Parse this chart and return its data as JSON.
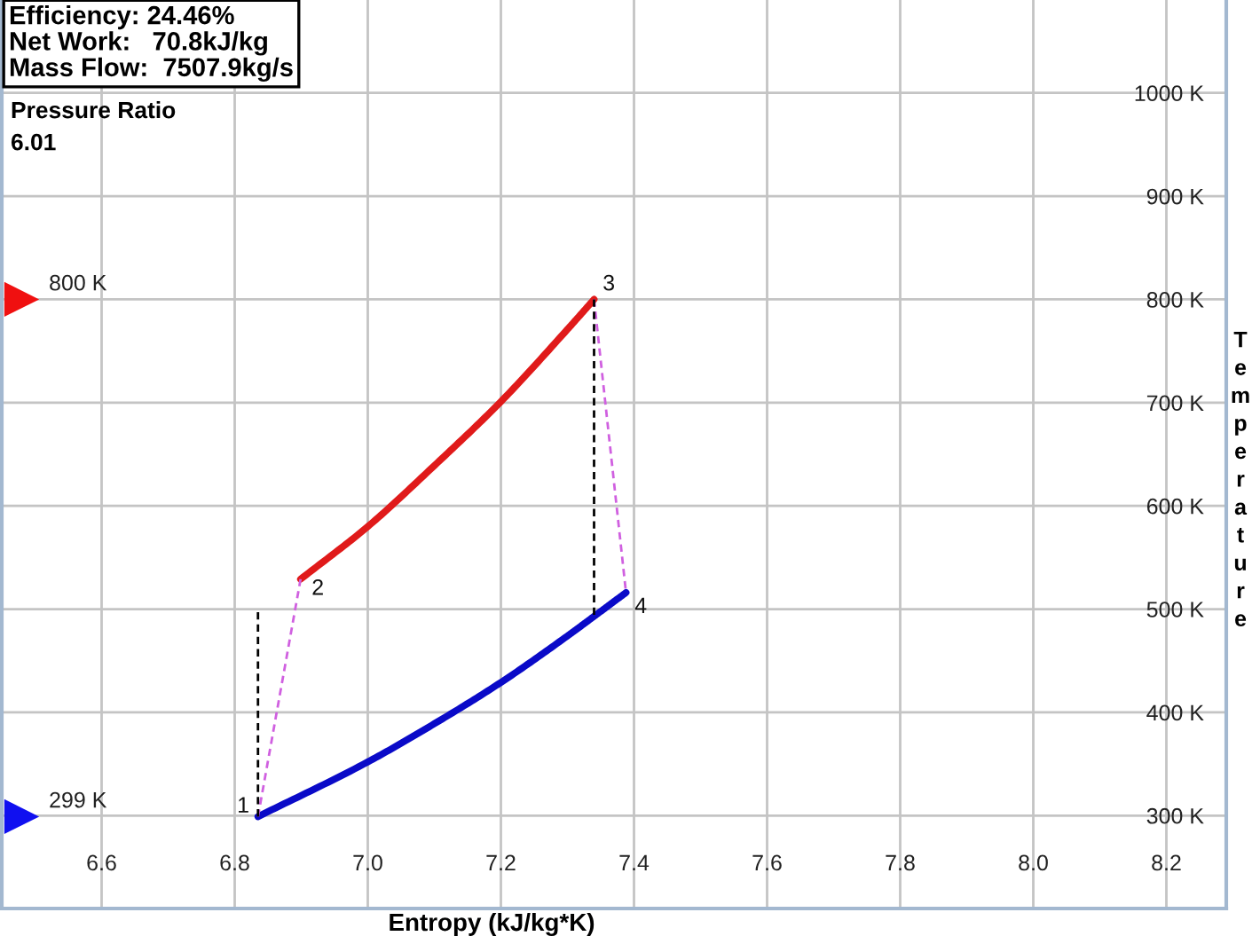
{
  "chart_data": {
    "type": "line",
    "xlabel": "Entropy (kJ/kg*K)",
    "ylabel": "Temperature",
    "xlim": [
      6.45,
      8.29
    ],
    "ylim": [
      210,
      1090
    ],
    "xticks": [
      6.6,
      6.8,
      {
        "value": 7,
        "label": "7.0"
      },
      7.2,
      7.4,
      7.6,
      7.8,
      {
        "value": 8,
        "label": "8.0"
      },
      8.2
    ],
    "yticks": [
      {
        "value": 300,
        "label": "300 K"
      },
      {
        "value": 400,
        "label": "400 K"
      },
      {
        "value": 500,
        "label": "500 K"
      },
      {
        "value": 600,
        "label": "600 K"
      },
      {
        "value": 700,
        "label": "700 K"
      },
      {
        "value": 800,
        "label": "800 K"
      },
      {
        "value": 900,
        "label": "900 K"
      },
      {
        "value": 1000,
        "label": "1000 K"
      }
    ],
    "grid": true,
    "series": [
      {
        "color": "#e01a1a",
        "line_style": "solid",
        "x": [
          6.899,
          7.0,
          7.1,
          7.2,
          7.3,
          7.34
        ],
        "values": [
          529,
          580,
          639,
          701,
          771,
          800
        ]
      },
      {
        "color": "#0a0ac8",
        "line_style": "solid",
        "x": [
          6.835,
          7.0,
          7.1,
          7.2,
          7.3,
          7.34,
          7.388
        ],
        "values": [
          299,
          352,
          389,
          429,
          474,
          493,
          516
        ]
      },
      {
        "color": "#d060e0",
        "line_style": "dashed",
        "x": [
          6.835,
          6.899
        ],
        "values": [
          299,
          529
        ]
      },
      {
        "color": "#d060e0",
        "line_style": "dashed",
        "x": [
          7.34,
          7.388
        ],
        "values": [
          800,
          516
        ]
      },
      {
        "color": "#000000",
        "line_style": "dashed",
        "x": [
          6.835,
          6.835
        ],
        "values": [
          299,
          497
        ]
      },
      {
        "color": "#000000",
        "line_style": "dashed",
        "x": [
          7.34,
          7.34
        ],
        "values": [
          800,
          493
        ]
      },
      {
        "type": "scatter",
        "marker": "triangle",
        "x": [
          6.48,
          6.48
        ],
        "values": [
          800,
          299
        ],
        "colors": [
          "#f01010",
          "#1010f0"
        ],
        "value_labels": [
          "800 K",
          "299 K"
        ]
      }
    ],
    "annotations": [
      "Efficiency: 24.46%\nNet Work:   70.8kJ/kg\nMass Flow:  7507.9kg/s",
      "Pressure Ratio\n6.01",
      {
        "text": "1",
        "x": 6.835,
        "y": 299
      },
      {
        "text": "2",
        "x": 6.899,
        "y": 529
      },
      {
        "text": "3",
        "x": 7.34,
        "y": 800
      },
      {
        "text": "4",
        "x": 7.388,
        "y": 516
      }
    ]
  }
}
